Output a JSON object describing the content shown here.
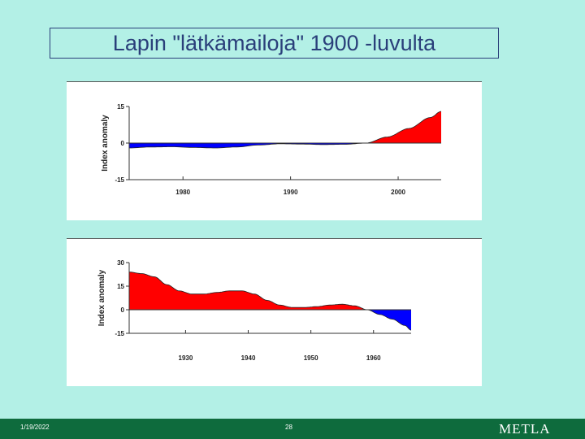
{
  "slide": {
    "title": "Lapin \"lätkämailoja\" 1900 -luvulta"
  },
  "footer": {
    "date": "1/19/2022",
    "page": "28",
    "logo": "METLA"
  },
  "colors": {
    "background": "#b3f0e6",
    "title_text": "#2a3f7a",
    "positive_fill": "#ff0000",
    "negative_fill": "#0000ff",
    "footer_bar": "#0e6b3d"
  },
  "chart_data": [
    {
      "type": "area",
      "ylabel": "Index anomaly",
      "ylim": [
        -15,
        15
      ],
      "yticks": [
        -15,
        0,
        15
      ],
      "xlim": [
        1975,
        2004
      ],
      "xticks": [
        1980,
        1990,
        2000
      ],
      "x": [
        1975,
        1977,
        1979,
        1981,
        1983,
        1985,
        1987,
        1989,
        1991,
        1993,
        1995,
        1997,
        1999,
        2001,
        2003,
        2004
      ],
      "values": [
        -2,
        -1.6,
        -1.5,
        -1.8,
        -2,
        -1.6,
        -0.8,
        -0.3,
        -0.4,
        -0.6,
        -0.5,
        0,
        2.5,
        6,
        10.5,
        13
      ]
    },
    {
      "type": "area",
      "ylabel": "Index anomaly",
      "ylim": [
        -15,
        30
      ],
      "yticks": [
        -15,
        0,
        15,
        30
      ],
      "xlim": [
        1921,
        1966
      ],
      "xticks": [
        1930,
        1940,
        1950,
        1960
      ],
      "x": [
        1921,
        1923,
        1925,
        1927,
        1929,
        1931,
        1933,
        1935,
        1937,
        1939,
        1941,
        1943,
        1945,
        1947,
        1949,
        1951,
        1953,
        1955,
        1957,
        1959,
        1961,
        1963,
        1965,
        1966
      ],
      "values": [
        24,
        23,
        21,
        16,
        12,
        10,
        10,
        11,
        12,
        12,
        10,
        6,
        3,
        1.5,
        1.5,
        2,
        3,
        3.5,
        2.5,
        0,
        -3,
        -6,
        -10,
        -13
      ]
    }
  ]
}
